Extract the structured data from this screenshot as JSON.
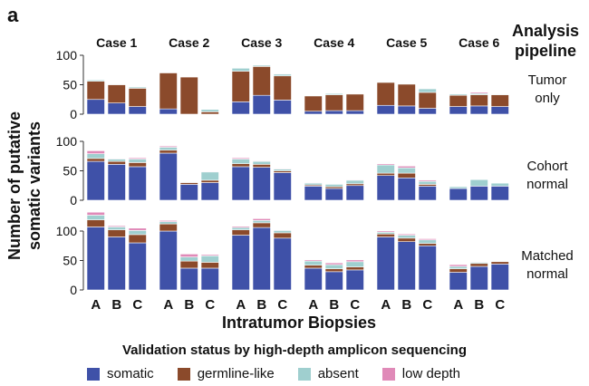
{
  "panel_label": "a",
  "pipeline_header": [
    "Analysis",
    "pipeline"
  ],
  "y_label": [
    "Number of putative",
    "somatic variants"
  ],
  "x_label": "Intratumor Biopsies",
  "legend": {
    "title": "Validation status by high-depth amplicon sequencing",
    "items": [
      {
        "key": "somatic",
        "label": "somatic",
        "color": "#3f51a8"
      },
      {
        "key": "germline",
        "label": "germline-like",
        "color": "#8b4a2b"
      },
      {
        "key": "absent",
        "label": "absent",
        "color": "#9fcfcf"
      },
      {
        "key": "lowdepth",
        "label": "low depth",
        "color": "#e08ab8"
      }
    ]
  },
  "chart_data": {
    "type": "bar",
    "stacked": true,
    "cases": [
      "Case 1",
      "Case 2",
      "Case 3",
      "Case 4",
      "Case 5",
      "Case 6"
    ],
    "biopsies": [
      "A",
      "B",
      "C"
    ],
    "yticks": [
      0,
      50,
      100
    ],
    "ylim": [
      0,
      100
    ],
    "grid": false,
    "series_order": [
      "somatic",
      "germline",
      "absent",
      "lowdepth"
    ],
    "rows": [
      {
        "pipeline": [
          "Tumor",
          "only"
        ],
        "ylim": [
          0,
          100
        ],
        "yticks": [
          0,
          50,
          100
        ],
        "data": [
          [
            {
              "somatic": 25,
              "germline": 31,
              "absent": 2,
              "lowdepth": 0
            },
            {
              "somatic": 19,
              "germline": 31,
              "absent": 1,
              "lowdepth": 0
            },
            {
              "somatic": 13,
              "germline": 31,
              "absent": 2,
              "lowdepth": 0
            }
          ],
          [
            {
              "somatic": 9,
              "germline": 61,
              "absent": 0,
              "lowdepth": 0
            },
            {
              "somatic": 0,
              "germline": 63,
              "absent": 0,
              "lowdepth": 0
            },
            {
              "somatic": 0,
              "germline": 4,
              "absent": 4,
              "lowdepth": 0
            }
          ],
          [
            {
              "somatic": 21,
              "germline": 52,
              "absent": 5,
              "lowdepth": 0
            },
            {
              "somatic": 32,
              "germline": 49,
              "absent": 2,
              "lowdepth": 0
            },
            {
              "somatic": 24,
              "germline": 41,
              "absent": 3,
              "lowdepth": 1
            }
          ],
          [
            {
              "somatic": 5,
              "germline": 26,
              "absent": 1,
              "lowdepth": 0
            },
            {
              "somatic": 6,
              "germline": 27,
              "absent": 2,
              "lowdepth": 0
            },
            {
              "somatic": 6,
              "germline": 28,
              "absent": 0,
              "lowdepth": 0
            }
          ],
          [
            {
              "somatic": 15,
              "germline": 39,
              "absent": 1,
              "lowdepth": 0
            },
            {
              "somatic": 14,
              "germline": 37,
              "absent": 1,
              "lowdepth": 0
            },
            {
              "somatic": 10,
              "germline": 27,
              "absent": 6,
              "lowdepth": 0
            }
          ],
          [
            {
              "somatic": 13,
              "germline": 19,
              "absent": 2,
              "lowdepth": 0
            },
            {
              "somatic": 14,
              "germline": 19,
              "absent": 2,
              "lowdepth": 2
            },
            {
              "somatic": 13,
              "germline": 20,
              "absent": 1,
              "lowdepth": 0
            }
          ]
        ]
      },
      {
        "pipeline": [
          "Cohort",
          "normal"
        ],
        "ylim": [
          0,
          100
        ],
        "yticks": [
          0,
          50,
          100
        ],
        "data": [
          [
            {
              "somatic": 66,
              "germline": 5,
              "absent": 8,
              "lowdepth": 5
            },
            {
              "somatic": 61,
              "germline": 5,
              "absent": 4,
              "lowdepth": 1
            },
            {
              "somatic": 57,
              "germline": 7,
              "absent": 6,
              "lowdepth": 2
            }
          ],
          [
            {
              "somatic": 80,
              "germline": 5,
              "absent": 5,
              "lowdepth": 2
            },
            {
              "somatic": 27,
              "germline": 3,
              "absent": 1,
              "lowdepth": 0
            },
            {
              "somatic": 30,
              "germline": 4,
              "absent": 14,
              "lowdepth": 1
            }
          ],
          [
            {
              "somatic": 57,
              "germline": 5,
              "absent": 8,
              "lowdepth": 2
            },
            {
              "somatic": 56,
              "germline": 5,
              "absent": 5,
              "lowdepth": 1
            },
            {
              "somatic": 47,
              "germline": 3,
              "absent": 3,
              "lowdepth": 1
            }
          ],
          [
            {
              "somatic": 24,
              "germline": 2,
              "absent": 3,
              "lowdepth": 1
            },
            {
              "somatic": 20,
              "germline": 3,
              "absent": 4,
              "lowdepth": 0
            },
            {
              "somatic": 25,
              "germline": 3,
              "absent": 6,
              "lowdepth": 1
            }
          ],
          [
            {
              "somatic": 42,
              "germline": 4,
              "absent": 14,
              "lowdepth": 2
            },
            {
              "somatic": 38,
              "germline": 8,
              "absent": 9,
              "lowdepth": 3
            },
            {
              "somatic": 24,
              "germline": 3,
              "absent": 5,
              "lowdepth": 2
            }
          ],
          [
            {
              "somatic": 20,
              "germline": 0,
              "absent": 3,
              "lowdepth": 0
            },
            {
              "somatic": 24,
              "germline": 0,
              "absent": 11,
              "lowdepth": 0
            },
            {
              "somatic": 24,
              "germline": 0,
              "absent": 5,
              "lowdepth": 0
            }
          ]
        ]
      },
      {
        "pipeline": [
          "Matched",
          "normal"
        ],
        "ylim": [
          0,
          100
        ],
        "yticks": [
          0,
          50,
          100
        ],
        "data": [
          [
            {
              "somatic": 107,
              "germline": 12,
              "absent": 8,
              "lowdepth": 5
            },
            {
              "somatic": 90,
              "germline": 12,
              "absent": 5,
              "lowdepth": 2
            },
            {
              "somatic": 80,
              "germline": 14,
              "absent": 7,
              "lowdepth": 4
            }
          ],
          [
            {
              "somatic": 100,
              "germline": 12,
              "absent": 4,
              "lowdepth": 2
            },
            {
              "somatic": 37,
              "germline": 12,
              "absent": 7,
              "lowdepth": 5
            },
            {
              "somatic": 37,
              "germline": 10,
              "absent": 11,
              "lowdepth": 2
            }
          ],
          [
            {
              "somatic": 93,
              "germline": 9,
              "absent": 4,
              "lowdepth": 2
            },
            {
              "somatic": 106,
              "germline": 8,
              "absent": 4,
              "lowdepth": 3
            },
            {
              "somatic": 88,
              "germline": 9,
              "absent": 4,
              "lowdepth": 1
            }
          ],
          [
            {
              "somatic": 37,
              "germline": 5,
              "absent": 7,
              "lowdepth": 2
            },
            {
              "somatic": 31,
              "germline": 5,
              "absent": 7,
              "lowdepth": 3
            },
            {
              "somatic": 34,
              "germline": 5,
              "absent": 9,
              "lowdepth": 3
            }
          ],
          [
            {
              "somatic": 90,
              "germline": 5,
              "absent": 3,
              "lowdepth": 2
            },
            {
              "somatic": 82,
              "germline": 6,
              "absent": 5,
              "lowdepth": 2
            },
            {
              "somatic": 75,
              "germline": 4,
              "absent": 6,
              "lowdepth": 2
            }
          ],
          [
            {
              "somatic": 30,
              "germline": 6,
              "absent": 4,
              "lowdepth": 3
            },
            {
              "somatic": 40,
              "germline": 5,
              "absent": 2,
              "lowdepth": 1
            },
            {
              "somatic": 44,
              "germline": 4,
              "absent": 0,
              "lowdepth": 0
            }
          ]
        ]
      }
    ]
  }
}
